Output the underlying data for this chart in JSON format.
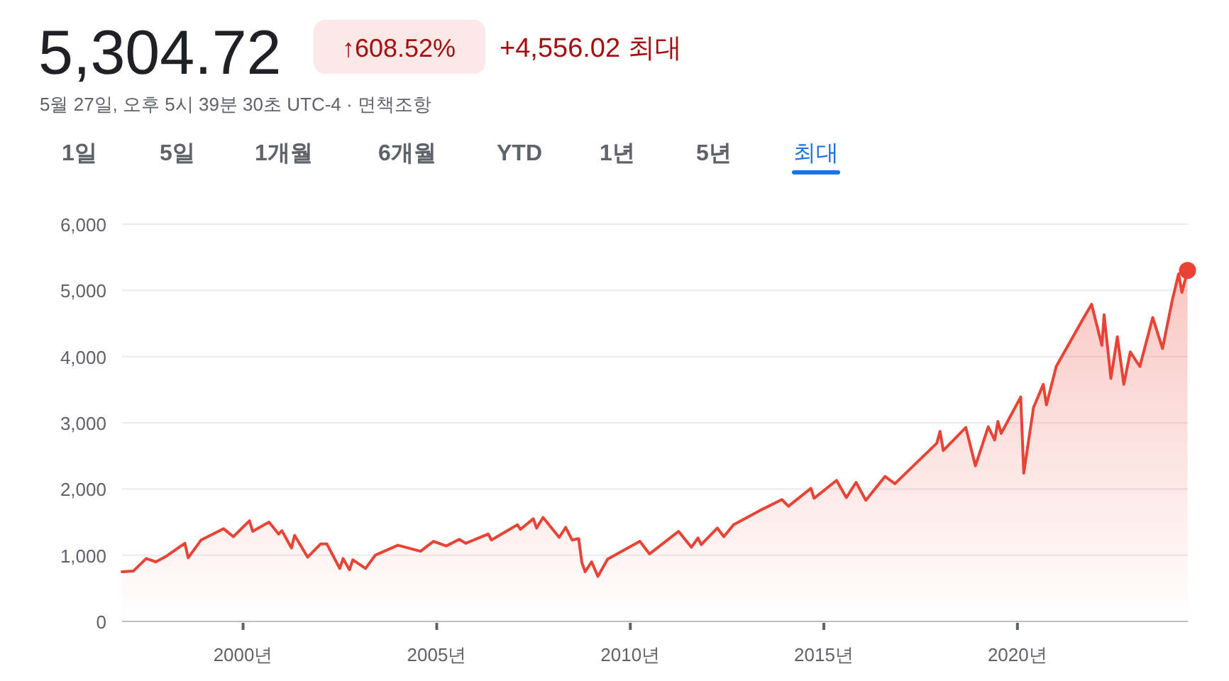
{
  "chart_data": {
    "type": "area",
    "title": "5,304.72",
    "subtitle": "5월 27일, 오후 5시 39분 30초 UTC-4 · 면책조항",
    "annotations": [
      "↑608.52%",
      "+4,556.02 최대",
      "1일",
      "5일",
      "1개월",
      "6개월",
      "YTD",
      "1년",
      "5년",
      "최대"
    ],
    "series": [
      {
        "color": "#ea4335",
        "x": [
          "1996-11-15",
          "1997-03",
          "1997-07",
          "1997-10",
          "1998-01",
          "1998-07",
          "1998-08",
          "1998-12",
          "1999-07",
          "1999-10",
          "2000-03",
          "2000-04",
          "2000-09",
          "2000-12",
          "2001-01",
          "2001-04",
          "2001-05",
          "2001-09",
          "2002-01",
          "2002-03",
          "2002-07",
          "2002-08",
          "2002-10",
          "2002-11",
          "2003-03",
          "2003-06",
          "2004-01",
          "2004-08",
          "2004-12",
          "2005-04",
          "2005-08",
          "2005-10",
          "2006-05",
          "2006-06",
          "2007-02",
          "2007-03",
          "2007-07",
          "2007-08",
          "2007-10",
          "2008-03",
          "2008-05",
          "2008-07",
          "2008-09",
          "2008-10",
          "2008-11",
          "2009-01",
          "2009-03",
          "2009-06",
          "2010-04",
          "2010-07",
          "2011-04",
          "2011-08",
          "2011-10",
          "2011-11",
          "2012-04",
          "2012-06",
          "2012-09",
          "2013-05",
          "2013-12",
          "2014-02",
          "2014-09",
          "2014-10",
          "2015-05",
          "2015-08",
          "2015-11",
          "2016-02",
          "2016-08",
          "2016-11",
          "2017-12",
          "2018-01",
          "2018-02",
          "2018-09",
          "2018-12",
          "2019-04",
          "2019-06",
          "2019-07",
          "2019-08",
          "2020-02",
          "2020-03",
          "2020-06",
          "2020-09",
          "2020-10",
          "2021-01",
          "2021-09",
          "2021-12",
          "2022-03-08",
          "2022-03-29",
          "2022-06",
          "2022-08",
          "2022-10",
          "2022-12",
          "2023-03",
          "2023-07",
          "2023-10",
          "2024-01",
          "2024-03",
          "2024-04",
          "2024-05-24"
        ],
        "values": [
          750,
          760,
          950,
          900,
          980,
          1180,
          960,
          1230,
          1400,
          1280,
          1520,
          1360,
          1500,
          1320,
          1370,
          1110,
          1300,
          970,
          1170,
          1170,
          800,
          950,
          780,
          930,
          800,
          1000,
          1150,
          1060,
          1210,
          1140,
          1240,
          1180,
          1320,
          1230,
          1460,
          1390,
          1550,
          1410,
          1570,
          1270,
          1420,
          1230,
          1250,
          890,
          750,
          900,
          680,
          940,
          1210,
          1020,
          1360,
          1120,
          1260,
          1160,
          1410,
          1280,
          1460,
          1670,
          1840,
          1740,
          2010,
          1860,
          2130,
          1870,
          2100,
          1830,
          2190,
          2080,
          2690,
          2870,
          2580,
          2930,
          2350,
          2940,
          2740,
          3020,
          2840,
          3390,
          2240,
          3230,
          3580,
          3270,
          3850,
          4540,
          4790,
          4170,
          4630,
          3670,
          4300,
          3580,
          4070,
          3850,
          4590,
          4120,
          4850,
          5250,
          4970,
          5300
        ]
      },
      {
        "type": "scatter",
        "color": "#ea4335",
        "x": [
          "2024-05-24"
        ],
        "values": [
          5300
        ]
      }
    ],
    "xlim": [
      "1996-11-15",
      "2024-05-27"
    ],
    "xticks": [
      {
        "value": "2000",
        "label": "2000년"
      },
      {
        "value": "2005",
        "label": "2005년"
      },
      {
        "value": "2010",
        "label": "2010년"
      },
      {
        "value": "2015",
        "label": "2015년"
      },
      {
        "value": "2020",
        "label": "2020년"
      }
    ],
    "ylim": [
      0,
      6000
    ],
    "yticks": [
      {
        "value": 0,
        "label": "0"
      },
      {
        "value": 1000,
        "label": "1,000"
      },
      {
        "value": 2000,
        "label": "2,000"
      },
      {
        "value": 3000,
        "label": "3,000"
      },
      {
        "value": 4000,
        "label": "4,000"
      },
      {
        "value": 5000,
        "label": "5,000"
      },
      {
        "value": 6000,
        "label": "6,000"
      }
    ],
    "grid": "y",
    "line_style": "solid"
  }
}
